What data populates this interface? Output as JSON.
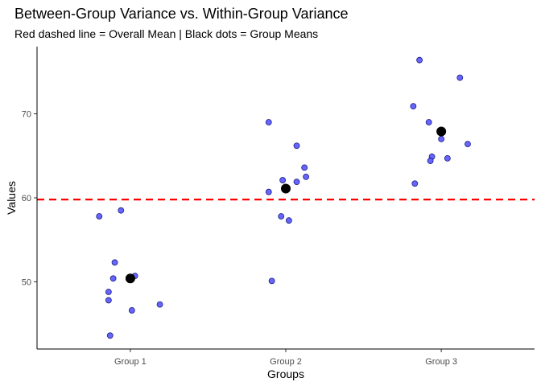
{
  "chart_data": {
    "type": "scatter",
    "title": "Between-Group Variance vs. Within-Group Variance",
    "subtitle": "Red dashed line = Overall Mean | Black dots = Group Means",
    "xlabel": "Groups",
    "ylabel": "Values",
    "categories": [
      "Group 1",
      "Group 2",
      "Group 3"
    ],
    "y_ticks": [
      50,
      60,
      70
    ],
    "ylim": [
      42.0,
      78.0
    ],
    "grid": false,
    "overall_mean": 59.8,
    "overall_mean_color": "#ff0000",
    "group_mean_color": "#000000",
    "point_color": "#6666ff",
    "series": [
      {
        "category": "Group 1",
        "mean": 50.4,
        "points": [
          {
            "offset": -0.2,
            "y": 57.8
          },
          {
            "offset": -0.06,
            "y": 58.5
          },
          {
            "offset": -0.1,
            "y": 52.3
          },
          {
            "offset": -0.11,
            "y": 50.4
          },
          {
            "offset": 0.03,
            "y": 50.7
          },
          {
            "offset": -0.14,
            "y": 48.8
          },
          {
            "offset": -0.14,
            "y": 47.8
          },
          {
            "offset": 0.01,
            "y": 46.6
          },
          {
            "offset": 0.19,
            "y": 47.3
          },
          {
            "offset": -0.13,
            "y": 43.6
          }
        ]
      },
      {
        "category": "Group 2",
        "mean": 61.1,
        "points": [
          {
            "offset": -0.11,
            "y": 69.0
          },
          {
            "offset": 0.07,
            "y": 66.2
          },
          {
            "offset": 0.12,
            "y": 63.6
          },
          {
            "offset": 0.13,
            "y": 62.5
          },
          {
            "offset": -0.02,
            "y": 62.1
          },
          {
            "offset": 0.07,
            "y": 61.9
          },
          {
            "offset": -0.11,
            "y": 60.7
          },
          {
            "offset": -0.03,
            "y": 57.8
          },
          {
            "offset": 0.02,
            "y": 57.3
          },
          {
            "offset": -0.09,
            "y": 50.1
          }
        ]
      },
      {
        "category": "Group 3",
        "mean": 67.9,
        "points": [
          {
            "offset": -0.14,
            "y": 76.4
          },
          {
            "offset": 0.12,
            "y": 74.3
          },
          {
            "offset": -0.18,
            "y": 70.9
          },
          {
            "offset": -0.08,
            "y": 69.0
          },
          {
            "offset": 0.0,
            "y": 67.0
          },
          {
            "offset": 0.17,
            "y": 66.4
          },
          {
            "offset": -0.06,
            "y": 64.9
          },
          {
            "offset": 0.04,
            "y": 64.7
          },
          {
            "offset": -0.07,
            "y": 64.4
          },
          {
            "offset": -0.17,
            "y": 61.7
          }
        ]
      }
    ]
  }
}
